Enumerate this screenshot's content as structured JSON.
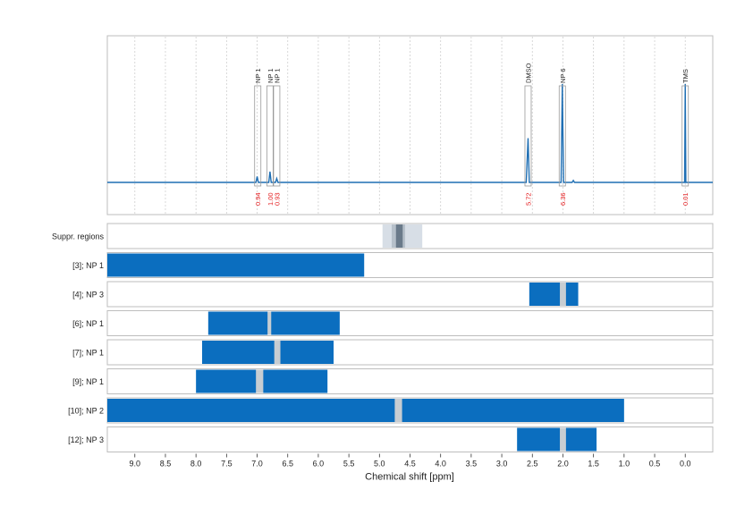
{
  "chart_data": {
    "type": "nmr_spectrum_with_region_bars",
    "xlabel": "Chemical shift [ppm]",
    "x_reversed": true,
    "xlim": [
      9.45,
      -0.45
    ],
    "ticks": [
      "9.0",
      "8.5",
      "8.0",
      "7.5",
      "7.0",
      "6.5",
      "6.0",
      "5.5",
      "5.0",
      "4.5",
      "4.0",
      "3.5",
      "3.0",
      "2.5",
      "2.0",
      "1.5",
      "1.0",
      "0.5",
      "0.0"
    ],
    "spectrum": {
      "line_color": "#1f6fb4",
      "baseline": 0,
      "points": [
        [
          9.45,
          0
        ],
        [
          7.02,
          0
        ],
        [
          7.0,
          0.06
        ],
        [
          6.98,
          0
        ],
        [
          6.81,
          0
        ],
        [
          6.79,
          0.11
        ],
        [
          6.77,
          0
        ],
        [
          6.7,
          0
        ],
        [
          6.68,
          0.04
        ],
        [
          6.66,
          0
        ],
        [
          2.6,
          0
        ],
        [
          2.57,
          0.45
        ],
        [
          2.55,
          0
        ],
        [
          2.03,
          0
        ],
        [
          2.01,
          1.0
        ],
        [
          1.99,
          0
        ],
        [
          1.85,
          0
        ],
        [
          1.83,
          0.02
        ],
        [
          1.81,
          0
        ],
        [
          0.01,
          0
        ],
        [
          0.0,
          1.0
        ],
        [
          -0.01,
          0
        ],
        [
          -0.45,
          0
        ]
      ],
      "peaks": [
        {
          "label": "NP 1",
          "ppm": 6.99,
          "integral": "0.94"
        },
        {
          "label": "NP 1",
          "ppm": 6.79,
          "integral": "1.00"
        },
        {
          "label": "NP 1",
          "ppm": 6.68,
          "integral": "0.93"
        },
        {
          "label": "DMSO",
          "ppm": 2.57,
          "integral": "5.72"
        },
        {
          "label": "NP 6",
          "ppm": 2.01,
          "integral": "6.36"
        },
        {
          "label": "TMS",
          "ppm": 0.0,
          "integral": "0.01"
        }
      ]
    },
    "suppressed_regions": {
      "label": "Suppr. regions",
      "outer": [
        4.95,
        4.3
      ],
      "inner": [
        4.8,
        4.58
      ],
      "core": [
        4.73,
        4.62
      ]
    },
    "rows": [
      {
        "label": "[3]; NP 1",
        "ranges": [
          [
            9.45,
            5.25
          ]
        ],
        "gaps": []
      },
      {
        "label": "[4]; NP 3",
        "ranges": [
          [
            2.55,
            1.75
          ]
        ],
        "gaps": [
          [
            2.05,
            1.95
          ]
        ]
      },
      {
        "label": "[6]; NP 1",
        "ranges": [
          [
            7.8,
            5.65
          ]
        ],
        "gaps": [
          [
            6.83,
            6.77
          ]
        ]
      },
      {
        "label": "[7]; NP 1",
        "ranges": [
          [
            7.9,
            5.75
          ]
        ],
        "gaps": [
          [
            6.72,
            6.62
          ]
        ]
      },
      {
        "label": "[9]; NP 1",
        "ranges": [
          [
            8.0,
            5.85
          ]
        ],
        "gaps": [
          [
            7.02,
            6.9
          ]
        ]
      },
      {
        "label": "[10]; NP 2",
        "ranges": [
          [
            9.45,
            1.0
          ]
        ],
        "gaps": [
          [
            4.75,
            4.63
          ]
        ]
      },
      {
        "label": "[12]; NP 3",
        "ranges": [
          [
            2.75,
            1.45
          ]
        ],
        "gaps": [
          [
            2.05,
            1.95
          ]
        ]
      }
    ],
    "colors": {
      "bar": "#0b6ebf",
      "gap": "#c7cdd2",
      "integral_text": "#e41a1c",
      "frame": "#bdbdbd",
      "grid": "#cfcfcf",
      "suppr_light": "#d7dee6",
      "suppr_mid": "#b6c0ca",
      "suppr_dark": "#6a7a8a"
    }
  }
}
